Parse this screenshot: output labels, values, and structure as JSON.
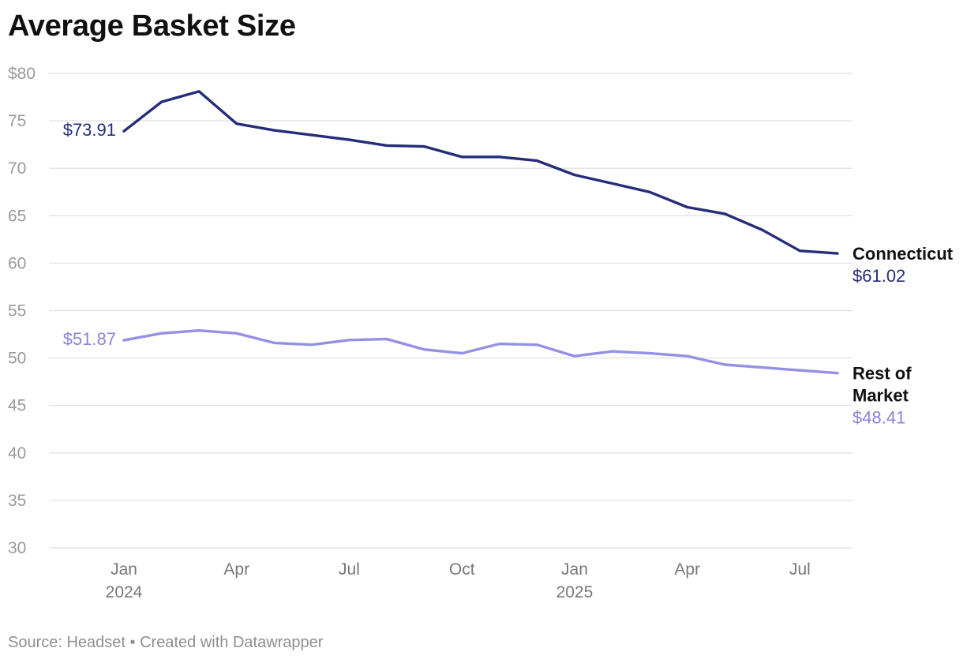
{
  "title": "Average Basket Size",
  "footer": {
    "source": "Source: Headset",
    "separator": " • ",
    "credit": "Created with Datawrapper"
  },
  "colors": {
    "connecticut": "#252d7a",
    "rest_of_market": "#9690e4",
    "rest_of_market_label": "#8a84d8",
    "grid": "#e3e3e3",
    "tick_text": "#9a9a9a",
    "month_text": "#777777",
    "series_name_text": "#111111"
  },
  "chart_data": {
    "type": "line",
    "title": "Average Basket Size",
    "xlabel": "",
    "ylabel": "",
    "x": [
      "2024-01",
      "2024-02",
      "2024-03",
      "2024-04",
      "2024-05",
      "2024-06",
      "2024-07",
      "2024-08",
      "2024-09",
      "2024-10",
      "2024-11",
      "2024-12",
      "2025-01",
      "2025-02",
      "2025-03",
      "2025-04",
      "2025-05",
      "2025-06",
      "2025-07",
      "2025-08"
    ],
    "ylim": [
      30,
      80
    ],
    "y_ticks": [
      {
        "value": 80,
        "label": "$80"
      },
      {
        "value": 75,
        "label": "75"
      },
      {
        "value": 70,
        "label": "70"
      },
      {
        "value": 65,
        "label": "65"
      },
      {
        "value": 60,
        "label": "60"
      },
      {
        "value": 55,
        "label": "55"
      },
      {
        "value": 50,
        "label": "50"
      },
      {
        "value": 45,
        "label": "45"
      },
      {
        "value": 40,
        "label": "40"
      },
      {
        "value": 35,
        "label": "35"
      },
      {
        "value": 30,
        "label": "30"
      }
    ],
    "x_ticks": [
      {
        "x": "2024-01",
        "label": "Jan",
        "year": "2024"
      },
      {
        "x": "2024-04",
        "label": "Apr",
        "year": ""
      },
      {
        "x": "2024-07",
        "label": "Jul",
        "year": ""
      },
      {
        "x": "2024-10",
        "label": "Oct",
        "year": ""
      },
      {
        "x": "2025-01",
        "label": "Jan",
        "year": "2025"
      },
      {
        "x": "2025-04",
        "label": "Apr",
        "year": ""
      },
      {
        "x": "2025-07",
        "label": "Jul",
        "year": ""
      }
    ],
    "grid": true,
    "legend": "direct labels at line ends",
    "series": [
      {
        "name": "Connecticut",
        "color": "#252d7a",
        "start_label": "$73.91",
        "end_label": "$61.02",
        "values": [
          73.91,
          77.0,
          78.1,
          74.7,
          74.0,
          73.5,
          73.0,
          72.4,
          72.3,
          71.2,
          71.2,
          70.8,
          69.3,
          68.4,
          67.5,
          65.9,
          65.2,
          63.5,
          61.3,
          61.02
        ]
      },
      {
        "name": "Rest of Market",
        "name_lines": [
          "Rest of",
          "Market"
        ],
        "color": "#9690e4",
        "start_label": "$51.87",
        "end_label": "$48.41",
        "values": [
          51.87,
          52.6,
          52.9,
          52.6,
          51.6,
          51.4,
          51.9,
          52.0,
          50.9,
          50.5,
          51.5,
          51.4,
          50.2,
          50.7,
          50.5,
          50.2,
          49.3,
          49.0,
          48.7,
          48.41
        ]
      }
    ]
  }
}
